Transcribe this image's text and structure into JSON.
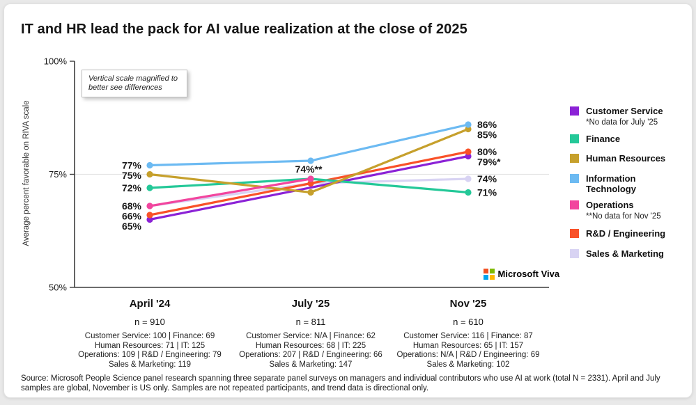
{
  "title": "IT and HR lead the pack for AI value realization at the close of 2025",
  "annotation": "Vertical scale magnified to better see differences",
  "y_axis_label": "Average percent favorable on RIVA scale",
  "brand": {
    "name": "Microsoft Viva",
    "logo_colors": [
      "#F25022",
      "#7FBA00",
      "#00A4EF",
      "#FFB900"
    ]
  },
  "source": "Source: Microsoft People Science panel research spanning three separate panel surveys on managers and individual contributors who use AI at work (total N = 2331). April and July samples are global, November is US only. Samples are not repeated participants, and trend data is directional only.",
  "chart_data": {
    "type": "line",
    "x_categories": [
      "April '24",
      "July '25",
      "Nov '25"
    ],
    "y_ticks": [
      {
        "label": "100%",
        "value": 100
      },
      {
        "label": "75%",
        "value": 75
      },
      {
        "label": "50%",
        "value": 50
      }
    ],
    "y_range": [
      50,
      100
    ],
    "gridline_at": 75,
    "legend_position": "right",
    "series": [
      {
        "name": "Customer Service",
        "legend_label": "Customer Service",
        "color": "#8B22D6",
        "values": [
          65,
          null,
          79
        ],
        "labels": [
          "65%",
          null,
          "79%*"
        ],
        "note": "*No data for July '25"
      },
      {
        "name": "Finance",
        "legend_label": "Finance",
        "color": "#24C898",
        "values": [
          72,
          74,
          71
        ],
        "labels": [
          "72%",
          null,
          "71%"
        ]
      },
      {
        "name": "Human Resources",
        "legend_label": "Human Resources",
        "color": "#C6A02C",
        "values": [
          75,
          71,
          85
        ],
        "labels": [
          "75%",
          null,
          "85%"
        ]
      },
      {
        "name": "Information Technology",
        "legend_label": "Information\nTechnology",
        "color": "#6CBAF2",
        "values": [
          77,
          78,
          86
        ],
        "labels": [
          "77%",
          null,
          "86%"
        ]
      },
      {
        "name": "Operations",
        "legend_label": "Operations",
        "color": "#F2459E",
        "values": [
          68,
          74,
          null
        ],
        "labels": [
          null,
          "74%**",
          null
        ],
        "note": "**No data for Nov '25"
      },
      {
        "name": "R&D / Engineering",
        "legend_label": "R&D / Engineering",
        "color": "#F95128",
        "values": [
          66,
          73,
          80
        ],
        "labels": [
          "66%",
          null,
          "80%"
        ]
      },
      {
        "name": "Sales & Marketing",
        "legend_label": "Sales & Marketing",
        "color": "#D8D3F3",
        "values": [
          68,
          73,
          74
        ],
        "labels": [
          "68%",
          null,
          "74%"
        ]
      }
    ],
    "x_axis_detail": [
      {
        "label": "April '24",
        "n": "n = 910",
        "breakdown": [
          "Customer Service: 100 | Finance: 69",
          "Human Resources: 71 | IT: 125",
          "Operations: 109 | R&D / Engineering: 79",
          "Sales & Marketing: 119"
        ]
      },
      {
        "label": "July '25",
        "n": "n = 811",
        "breakdown": [
          "Customer Service: N/A | Finance: 62",
          "Human Resources: 68 | IT: 225",
          "Operations: 207 | R&D / Engineering: 66",
          "Sales & Marketing: 147"
        ]
      },
      {
        "label": "Nov '25",
        "n": "n = 610",
        "breakdown": [
          "Customer Service: 116 | Finance: 87",
          "Human Resources: 65 | IT: 157",
          "Operations: N/A | R&D / Engineering: 69",
          "Sales & Marketing: 102"
        ]
      }
    ]
  }
}
